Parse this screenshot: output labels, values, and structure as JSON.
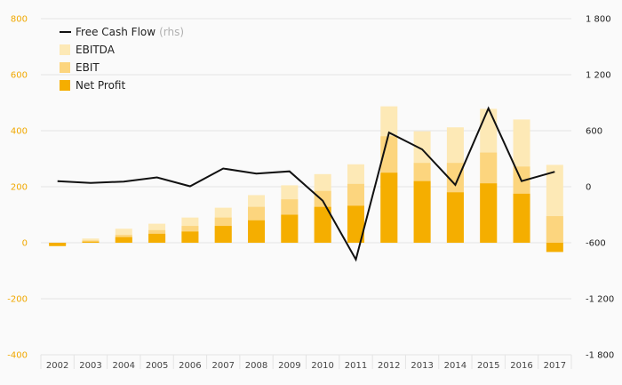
{
  "chart_data": {
    "type": "bar",
    "categories": [
      "2002",
      "2003",
      "2004",
      "2005",
      "2006",
      "2007",
      "2008",
      "2009",
      "2010",
      "2011",
      "2012",
      "2013",
      "2014",
      "2015",
      "2016",
      "2017"
    ],
    "series": [
      {
        "name": "EBITDA",
        "kind": "bar",
        "axis": "left",
        "color": "#fde9b6",
        "values": [
          -5,
          15,
          50,
          68,
          90,
          125,
          170,
          205,
          245,
          280,
          487,
          398,
          412,
          478,
          440,
          278
        ]
      },
      {
        "name": "EBIT",
        "kind": "bar",
        "axis": "left",
        "color": "#fcd57e",
        "values": [
          -8,
          8,
          28,
          45,
          60,
          90,
          128,
          155,
          185,
          210,
          380,
          285,
          285,
          322,
          272,
          95
        ]
      },
      {
        "name": "Net Profit",
        "kind": "bar",
        "axis": "left",
        "color": "#f5ae00",
        "values": [
          -12,
          4,
          20,
          32,
          40,
          60,
          80,
          100,
          128,
          132,
          250,
          220,
          180,
          212,
          175,
          -33
        ]
      },
      {
        "name": "Free Cash Flow",
        "kind": "line",
        "axis": "right",
        "color": "#111111",
        "values": [
          60,
          40,
          55,
          100,
          5,
          195,
          140,
          165,
          -150,
          -780,
          580,
          400,
          20,
          840,
          60,
          160
        ]
      }
    ],
    "legend": [
      {
        "label": "Free Cash Flow",
        "suffix": "(rhs)",
        "marker": "line",
        "color": "#111111"
      },
      {
        "label": "EBITDA",
        "suffix": "",
        "marker": "square",
        "color": "#fde9b6"
      },
      {
        "label": "EBIT",
        "suffix": "",
        "marker": "square",
        "color": "#fcd57e"
      },
      {
        "label": "Net Profit",
        "suffix": "",
        "marker": "square",
        "color": "#f5ae00"
      }
    ],
    "legend_position": "top-left",
    "yleft": {
      "min": -400,
      "max": 800,
      "ticks": [
        -400,
        -200,
        0,
        200,
        400,
        600,
        800
      ],
      "tick_labels": [
        "-400",
        "-200",
        "0",
        "200",
        "400",
        "600",
        "800"
      ]
    },
    "yright": {
      "min": -1800,
      "max": 1800,
      "ticks": [
        -1800,
        -1200,
        -600,
        0,
        600,
        1200,
        1800
      ],
      "tick_labels": [
        "-1 800",
        "-1 200",
        "-600",
        "0",
        "600",
        "1 200",
        "1 800"
      ]
    },
    "grid": true,
    "colors": {
      "left_axis": "#f0a800",
      "right_axis": "#222222",
      "grid": "#e4e4e4"
    }
  }
}
